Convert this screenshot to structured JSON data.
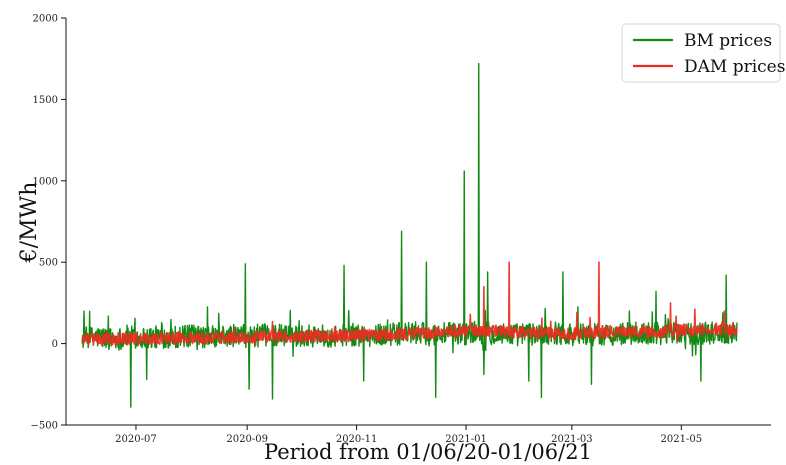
{
  "chart_data": {
    "type": "line",
    "xlabel": "Period from 01/06/20-01/06/21",
    "ylabel": "€/MWh",
    "ylim": [
      -500,
      2000
    ],
    "yticks": [
      -500,
      0,
      500,
      1000,
      1500,
      2000
    ],
    "ytick_labels": [
      "−500",
      "0",
      "500",
      "1000",
      "1500",
      "2000"
    ],
    "xlim": [
      "2020-05-23",
      "2021-06-20"
    ],
    "xticks": [
      "2020-07-01",
      "2020-09-01",
      "2020-11-01",
      "2021-01-01",
      "2021-03-01",
      "2021-05-01"
    ],
    "xtick_labels": [
      "2020-07",
      "2020-09",
      "2020-11",
      "2021-01",
      "2021-03",
      "2021-05"
    ],
    "legend_position": "top-right",
    "grid": false,
    "series": [
      {
        "name": "BM prices",
        "color": "#138a13",
        "x": [
          "2020-06-01",
          "2020-06-10",
          "2020-06-20",
          "2020-06-26",
          "2020-07-01",
          "2020-07-15",
          "2020-08-01",
          "2020-08-15",
          "2020-08-26",
          "2020-09-01",
          "2020-09-15",
          "2020-10-01",
          "2020-10-15",
          "2020-10-31",
          "2020-11-10",
          "2020-11-25",
          "2020-12-05",
          "2020-12-10",
          "2020-12-20",
          "2020-12-31",
          "2021-01-05",
          "2021-01-12",
          "2021-01-20",
          "2021-02-01",
          "2021-02-10",
          "2021-02-20",
          "2021-03-01",
          "2021-03-15",
          "2021-04-01",
          "2021-04-15",
          "2021-05-01",
          "2021-05-15",
          "2021-06-01"
        ],
        "y": [
          30,
          40,
          25,
          45,
          35,
          40,
          45,
          40,
          50,
          45,
          55,
          50,
          45,
          55,
          50,
          60,
          65,
          55,
          60,
          60,
          70,
          65,
          60,
          55,
          60,
          65,
          60,
          55,
          60,
          65,
          60,
          65,
          70
        ],
        "spikes": [
          {
            "x": "2020-06-02",
            "y": 200
          },
          {
            "x": "2020-06-28",
            "y": -390
          },
          {
            "x": "2020-07-07",
            "y": -220
          },
          {
            "x": "2020-08-31",
            "y": 490
          },
          {
            "x": "2020-09-15",
            "y": -340
          },
          {
            "x": "2020-09-02",
            "y": -280
          },
          {
            "x": "2020-10-25",
            "y": 480
          },
          {
            "x": "2020-11-05",
            "y": -230
          },
          {
            "x": "2020-11-26",
            "y": 690
          },
          {
            "x": "2020-12-10",
            "y": 500
          },
          {
            "x": "2020-12-15",
            "y": -330
          },
          {
            "x": "2020-12-31",
            "y": 1060
          },
          {
            "x": "2021-01-08",
            "y": 1720
          },
          {
            "x": "2021-01-11",
            "y": -190
          },
          {
            "x": "2021-01-13",
            "y": 440
          },
          {
            "x": "2021-02-05",
            "y": -230
          },
          {
            "x": "2021-02-12",
            "y": -330
          },
          {
            "x": "2021-02-24",
            "y": 440
          },
          {
            "x": "2021-03-12",
            "y": -250
          },
          {
            "x": "2021-04-17",
            "y": 320
          },
          {
            "x": "2021-05-12",
            "y": -230
          },
          {
            "x": "2021-05-26",
            "y": 420
          }
        ]
      },
      {
        "name": "DAM prices",
        "color": "#ee2b1f",
        "x": [
          "2020-06-01",
          "2020-07-01",
          "2020-08-01",
          "2020-09-01",
          "2020-10-01",
          "2020-11-01",
          "2020-12-01",
          "2020-12-15",
          "2021-01-01",
          "2021-01-15",
          "2021-02-01",
          "2021-02-15",
          "2021-03-01",
          "2021-03-15",
          "2021-04-01",
          "2021-04-15",
          "2021-05-01",
          "2021-05-15",
          "2021-06-01"
        ],
        "y": [
          25,
          30,
          35,
          40,
          45,
          50,
          60,
          65,
          80,
          75,
          70,
          65,
          60,
          70,
          75,
          70,
          80,
          85,
          90
        ],
        "spikes": [
          {
            "x": "2021-01-25",
            "y": 500
          },
          {
            "x": "2021-03-16",
            "y": 500
          },
          {
            "x": "2021-04-25",
            "y": 250
          },
          {
            "x": "2021-01-11",
            "y": 350
          },
          {
            "x": "2021-05-25",
            "y": 200
          }
        ]
      }
    ]
  }
}
